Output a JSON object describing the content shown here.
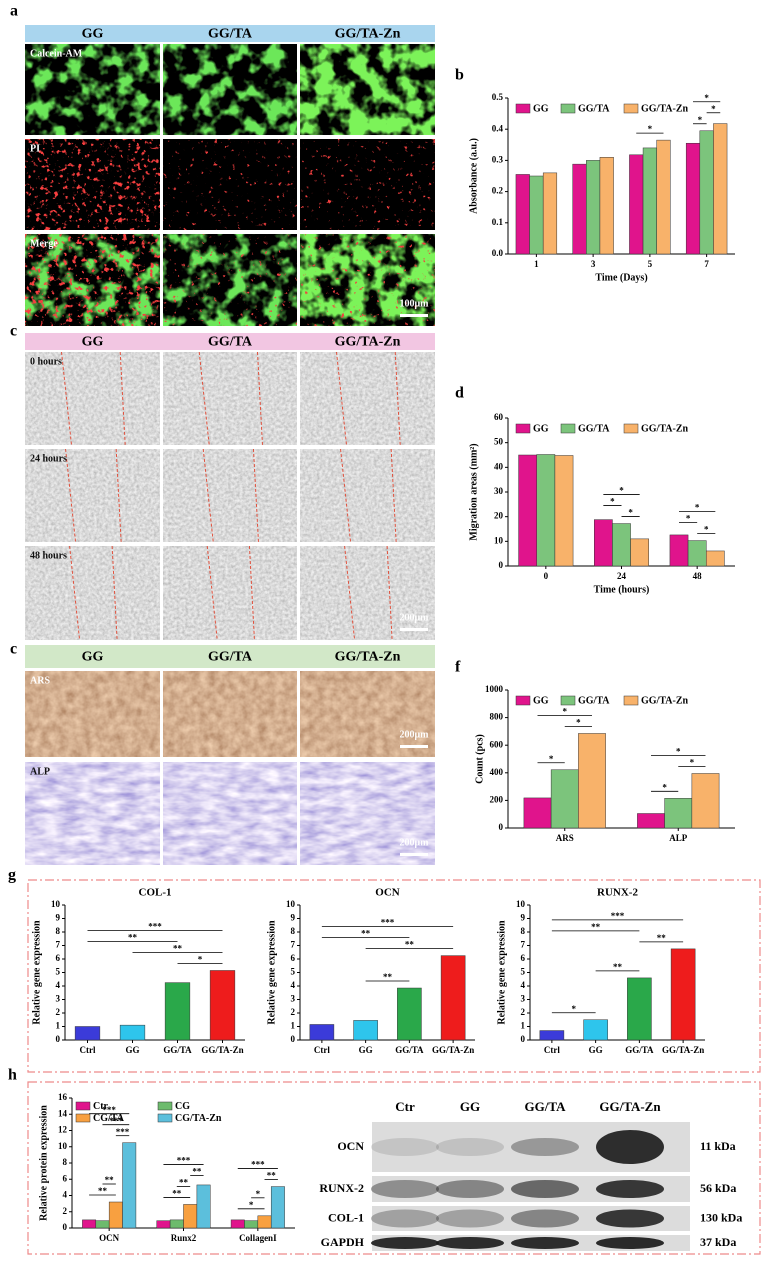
{
  "panel_labels": [
    "a",
    "b",
    "c",
    "d",
    "c",
    "f",
    "g",
    "h"
  ],
  "live_dead": {
    "columns": [
      "GG",
      "GG/TA",
      "GG/TA-Zn"
    ],
    "rows": [
      "Calcein-AM",
      "PI",
      "Merge"
    ],
    "scale_bar": "100μm"
  },
  "migration_images": {
    "columns": [
      "GG",
      "GG/TA",
      "GG/TA-Zn"
    ],
    "rows": [
      "0 hours",
      "24  hours",
      "48  hours"
    ],
    "scale_bar": "200μm"
  },
  "staining": {
    "columns": [
      "GG",
      "GG/TA",
      "GG/TA-Zn"
    ],
    "rows": [
      "ARS",
      "ALP"
    ],
    "scale_bars": [
      "200μm",
      "200μm"
    ]
  },
  "western_blot": {
    "columns": [
      "Ctr",
      "GG",
      "GG/TA",
      "GG/TA-Zn"
    ],
    "rows": [
      "OCN",
      "RUNX-2",
      "COL-1",
      "GAPDH"
    ],
    "sizes": [
      "11 kDa",
      "56 kDa",
      "130 kDa",
      "37 kDa"
    ]
  },
  "chart_data": [
    {
      "type": "bar",
      "y_label": "Absorbance (a.u.)",
      "x_label": "Time (Days)",
      "categories": [
        "1",
        "3",
        "5",
        "7"
      ],
      "series": [
        {
          "name": "GG",
          "color": "#e0148c",
          "values": [
            0.255,
            0.288,
            0.318,
            0.355
          ]
        },
        {
          "name": "GG/TA",
          "color": "#7cc47c",
          "values": [
            0.25,
            0.3,
            0.34,
            0.395
          ]
        },
        {
          "name": "GG/TA-Zn",
          "color": "#f8b26a",
          "values": [
            0.26,
            0.31,
            0.365,
            0.418
          ]
        }
      ],
      "ylim": [
        0,
        0.5
      ],
      "yticks": [
        {
          "value": 0,
          "label": "0.0"
        },
        0.1,
        0.2,
        0.3,
        0.4,
        0.5
      ],
      "legend": "top",
      "significance": [
        {
          "category": "5",
          "pair": [
            "GG",
            "GG/TA-Zn"
          ],
          "label": "*"
        },
        {
          "category": "7",
          "pair": [
            "GG",
            "GG/TA"
          ],
          "label": "*"
        },
        {
          "category": "7",
          "pair": [
            "GG/TA",
            "GG/TA-Zn"
          ],
          "label": "*"
        },
        {
          "category": "7",
          "pair": [
            "GG",
            "GG/TA-Zn"
          ],
          "label": "*"
        }
      ]
    },
    {
      "type": "bar",
      "y_label": "Migration areas (mm²)",
      "x_label": "Time (hours)",
      "categories": [
        "0",
        "24",
        "48"
      ],
      "series": [
        {
          "name": "GG",
          "color": "#e0148c",
          "values": [
            45,
            18.8,
            12.6
          ]
        },
        {
          "name": "GG/TA",
          "color": "#7cc47c",
          "values": [
            45.2,
            17.2,
            10.3
          ]
        },
        {
          "name": "GG/TA-Zn",
          "color": "#f8b26a",
          "values": [
            44.8,
            11,
            6.1
          ]
        }
      ],
      "ylim": [
        0,
        60
      ],
      "yticks": [
        0,
        10,
        20,
        30,
        40,
        50,
        60
      ],
      "legend": "top",
      "significance": [
        {
          "category": "24",
          "pair": [
            "GG/TA",
            "GG/TA-Zn"
          ],
          "label": "*"
        },
        {
          "category": "24",
          "pair": [
            "GG",
            "GG/TA"
          ],
          "label": "*"
        },
        {
          "category": "24",
          "pair": [
            "GG",
            "GG/TA-Zn"
          ],
          "label": "*"
        },
        {
          "category": "48",
          "pair": [
            "GG/TA",
            "GG/TA-Zn"
          ],
          "label": "*"
        },
        {
          "category": "48",
          "pair": [
            "GG",
            "GG/TA"
          ],
          "label": "*"
        },
        {
          "category": "48",
          "pair": [
            "GG",
            "GG/TA-Zn"
          ],
          "label": "*"
        }
      ]
    },
    {
      "type": "bar",
      "y_label": "Count (pcs)",
      "categories": [
        "ARS",
        "ALP"
      ],
      "series": [
        {
          "name": "GG",
          "color": "#e0148c",
          "values": [
            218,
            105
          ]
        },
        {
          "name": "GG/TA",
          "color": "#7cc47c",
          "values": [
            422,
            215
          ]
        },
        {
          "name": "GG/TA-Zn",
          "color": "#f8b26a",
          "values": [
            685,
            395
          ]
        }
      ],
      "ylim": [
        0,
        1000
      ],
      "yticks": [
        0,
        200,
        400,
        600,
        800,
        1000
      ],
      "legend": "top",
      "significance": [
        {
          "category": "ARS",
          "pair": [
            "GG",
            "GG/TA"
          ],
          "label": "*"
        },
        {
          "category": "ARS",
          "pair": [
            "GG/TA",
            "GG/TA-Zn"
          ],
          "label": "*"
        },
        {
          "category": "ARS",
          "pair": [
            "GG",
            "GG/TA-Zn"
          ],
          "label": "*"
        },
        {
          "category": "ALP",
          "pair": [
            "GG",
            "GG/TA"
          ],
          "label": "*"
        },
        {
          "category": "ALP",
          "pair": [
            "GG/TA",
            "GG/TA-Zn"
          ],
          "label": "*"
        },
        {
          "category": "ALP",
          "pair": [
            "GG",
            "GG/TA-Zn"
          ],
          "label": "*"
        }
      ]
    },
    {
      "type": "bar",
      "title": "COL-1",
      "y_label": "Relative gene expression",
      "categories": [
        "Ctrl",
        "GG",
        "GG/TA",
        "GG/TA-Zn"
      ],
      "values": [
        1.0,
        1.1,
        4.25,
        5.15
      ],
      "colors": [
        "#3b3bd9",
        "#2ec5ec",
        "#2aa84a",
        "#ee1c1c"
      ],
      "ylim": [
        0,
        10
      ],
      "yticks": [
        0,
        1,
        2,
        3,
        4,
        5,
        6,
        7,
        8,
        9,
        10
      ],
      "significance": [
        {
          "pair": [
            "GG/TA",
            "GG/TA-Zn"
          ],
          "label": "*"
        },
        {
          "pair": [
            "GG",
            "GG/TA-Zn"
          ],
          "label": "**"
        },
        {
          "pair": [
            "Ctrl",
            "GG/TA"
          ],
          "label": "**"
        },
        {
          "pair": [
            "Ctrl",
            "GG/TA-Zn"
          ],
          "label": "***"
        }
      ]
    },
    {
      "type": "bar",
      "title": "OCN",
      "y_label": "Relative gene expression",
      "categories": [
        "Ctrl",
        "GG",
        "GG/TA",
        "GG/TA-Zn"
      ],
      "values": [
        1.15,
        1.45,
        3.85,
        6.25
      ],
      "colors": [
        "#3b3bd9",
        "#2ec5ec",
        "#2aa84a",
        "#ee1c1c"
      ],
      "ylim": [
        0,
        10
      ],
      "yticks": [
        0,
        1,
        2,
        3,
        4,
        5,
        6,
        7,
        8,
        9,
        10
      ],
      "significance": [
        {
          "pair": [
            "GG",
            "GG/TA"
          ],
          "label": "**"
        },
        {
          "pair": [
            "GG",
            "GG/TA-Zn"
          ],
          "label": "**"
        },
        {
          "pair": [
            "Ctrl",
            "GG/TA"
          ],
          "label": "**"
        },
        {
          "pair": [
            "Ctrl",
            "GG/TA-Zn"
          ],
          "label": "***"
        }
      ]
    },
    {
      "type": "bar",
      "title": "RUNX-2",
      "y_label": "Relative gene expression",
      "categories": [
        "Ctrl",
        "GG",
        "GG/TA",
        "GG/TA-Zn"
      ],
      "values": [
        0.7,
        1.5,
        4.6,
        6.75
      ],
      "colors": [
        "#3b3bd9",
        "#2ec5ec",
        "#2aa84a",
        "#ee1c1c"
      ],
      "ylim": [
        0,
        10
      ],
      "yticks": [
        0,
        1,
        2,
        3,
        4,
        5,
        6,
        7,
        8,
        9,
        10
      ],
      "significance": [
        {
          "pair": [
            "Ctrl",
            "GG"
          ],
          "label": "*"
        },
        {
          "pair": [
            "GG",
            "GG/TA"
          ],
          "label": "**"
        },
        {
          "pair": [
            "GG/TA",
            "GG/TA-Zn"
          ],
          "label": "**"
        },
        {
          "pair": [
            "Ctrl",
            "GG/TA"
          ],
          "label": "**"
        },
        {
          "pair": [
            "Ctrl",
            "GG/TA-Zn"
          ],
          "label": "***"
        }
      ]
    },
    {
      "type": "bar",
      "y_label": "Relative protein expression",
      "categories": [
        "OCN",
        "Runx2",
        "CollagenI"
      ],
      "series": [
        {
          "name": "Ctr",
          "color": "#e0148c",
          "values": [
            1.0,
            0.9,
            1.0
          ]
        },
        {
          "name": "CG",
          "color": "#6dbb6d",
          "values": [
            0.9,
            1.0,
            0.9
          ]
        },
        {
          "name": "CG/TA",
          "color": "#f8a040",
          "values": [
            3.2,
            2.9,
            1.5
          ]
        },
        {
          "name": "CG/TA-Zn",
          "color": "#5cbfdc",
          "values": [
            10.5,
            5.3,
            5.1
          ]
        }
      ],
      "ylim": [
        0,
        16
      ],
      "yticks": [
        0,
        2,
        4,
        6,
        8,
        10,
        12,
        14,
        16
      ],
      "legend": "upper left",
      "significance": [
        {
          "category": "OCN",
          "pair": [
            "Ctr",
            "CG/TA"
          ],
          "label": "**"
        },
        {
          "category": "OCN",
          "pair": [
            "CG",
            "CG/TA"
          ],
          "label": "**"
        },
        {
          "category": "OCN",
          "pair": [
            "CG/TA",
            "CG/TA-Zn"
          ],
          "label": "***"
        },
        {
          "category": "OCN",
          "pair": [
            "CG",
            "CG/TA-Zn"
          ],
          "label": "***"
        },
        {
          "category": "OCN",
          "pair": [
            "Ctr",
            "CG/TA-Zn"
          ],
          "label": "***"
        },
        {
          "category": "Runx2",
          "pair": [
            "Ctr",
            "CG/TA"
          ],
          "label": "**"
        },
        {
          "category": "Runx2",
          "pair": [
            "CG",
            "CG/TA"
          ],
          "label": "**"
        },
        {
          "category": "Runx2",
          "pair": [
            "CG/TA",
            "CG/TA-Zn"
          ],
          "label": "**"
        },
        {
          "category": "Runx2",
          "pair": [
            "Ctr",
            "CG/TA-Zn"
          ],
          "label": "***"
        },
        {
          "category": "CollagenI",
          "pair": [
            "Ctr",
            "CG/TA"
          ],
          "label": "*"
        },
        {
          "category": "CollagenI",
          "pair": [
            "CG",
            "CG/TA"
          ],
          "label": "*"
        },
        {
          "category": "CollagenI",
          "pair": [
            "CG/TA",
            "CG/TA-Zn"
          ],
          "label": "**"
        },
        {
          "category": "CollagenI",
          "pair": [
            "Ctr",
            "CG/TA-Zn"
          ],
          "label": "***"
        }
      ]
    }
  ]
}
